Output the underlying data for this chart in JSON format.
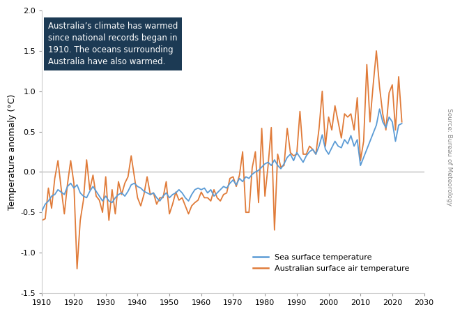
{
  "ylabel": "Temperature anomaly (°C)",
  "source_text": "Source: Bureau of Meteorology",
  "annotation_text": "Australia’s climate has warmed\nsince national records began in\n1910. The oceans surrounding\nAustralia have also warmed.",
  "annotation_bg": "#1c3a54",
  "annotation_text_color": "#ffffff",
  "xlim": [
    1910,
    2030
  ],
  "ylim": [
    -1.5,
    2.0
  ],
  "yticks": [
    -1.5,
    -1.0,
    -0.5,
    0.0,
    0.5,
    1.0,
    1.5,
    2.0
  ],
  "xticks": [
    1910,
    1920,
    1930,
    1940,
    1950,
    1960,
    1970,
    1980,
    1990,
    2000,
    2010,
    2020,
    2030
  ],
  "sea_color": "#5b9bd5",
  "air_color": "#e07b39",
  "sea_label": "Sea surface temperature",
  "air_label": "Australian surface air temperature",
  "background_color": "#ffffff",
  "plot_bg": "#ffffff",
  "grid_color": "#aaaaaa",
  "sea_years": [
    1910,
    1911,
    1912,
    1913,
    1914,
    1915,
    1916,
    1917,
    1918,
    1919,
    1920,
    1921,
    1922,
    1923,
    1924,
    1925,
    1926,
    1927,
    1928,
    1929,
    1930,
    1931,
    1932,
    1933,
    1934,
    1935,
    1936,
    1937,
    1938,
    1939,
    1940,
    1941,
    1942,
    1943,
    1944,
    1945,
    1946,
    1947,
    1948,
    1949,
    1950,
    1951,
    1952,
    1953,
    1954,
    1955,
    1956,
    1957,
    1958,
    1959,
    1960,
    1961,
    1962,
    1963,
    1964,
    1965,
    1966,
    1967,
    1968,
    1969,
    1970,
    1971,
    1972,
    1973,
    1974,
    1975,
    1976,
    1977,
    1978,
    1979,
    1980,
    1981,
    1982,
    1983,
    1984,
    1985,
    1986,
    1987,
    1988,
    1989,
    1990,
    1991,
    1992,
    1993,
    1994,
    1995,
    1996,
    1997,
    1998,
    1999,
    2000,
    2001,
    2002,
    2003,
    2004,
    2005,
    2006,
    2007,
    2008,
    2009,
    2010,
    2011,
    2012,
    2013,
    2014,
    2015,
    2016,
    2017,
    2018,
    2019,
    2020,
    2021,
    2022,
    2023
  ],
  "sea_values": [
    -0.48,
    -0.4,
    -0.36,
    -0.3,
    -0.28,
    -0.22,
    -0.25,
    -0.28,
    -0.18,
    -0.14,
    -0.2,
    -0.16,
    -0.26,
    -0.3,
    -0.32,
    -0.24,
    -0.18,
    -0.24,
    -0.3,
    -0.36,
    -0.3,
    -0.36,
    -0.38,
    -0.32,
    -0.28,
    -0.26,
    -0.3,
    -0.24,
    -0.16,
    -0.14,
    -0.18,
    -0.2,
    -0.24,
    -0.26,
    -0.28,
    -0.26,
    -0.32,
    -0.36,
    -0.3,
    -0.26,
    -0.32,
    -0.28,
    -0.26,
    -0.22,
    -0.26,
    -0.32,
    -0.36,
    -0.28,
    -0.22,
    -0.2,
    -0.22,
    -0.2,
    -0.26,
    -0.22,
    -0.3,
    -0.26,
    -0.22,
    -0.18,
    -0.2,
    -0.14,
    -0.1,
    -0.16,
    -0.08,
    -0.12,
    -0.06,
    -0.08,
    -0.03,
    0.0,
    0.02,
    0.06,
    0.1,
    0.12,
    0.08,
    0.15,
    0.08,
    0.04,
    0.1,
    0.18,
    0.22,
    0.14,
    0.24,
    0.18,
    0.12,
    0.2,
    0.25,
    0.28,
    0.22,
    0.32,
    0.46,
    0.28,
    0.22,
    0.3,
    0.38,
    0.32,
    0.3,
    0.4,
    0.35,
    0.45,
    0.32,
    0.4,
    0.08,
    0.18,
    0.28,
    0.38,
    0.48,
    0.58,
    0.78,
    0.62,
    0.55,
    0.68,
    0.62,
    0.38,
    0.58,
    0.6
  ],
  "air_years": [
    1910,
    1911,
    1912,
    1913,
    1914,
    1915,
    1916,
    1917,
    1918,
    1919,
    1920,
    1921,
    1922,
    1923,
    1924,
    1925,
    1926,
    1927,
    1928,
    1929,
    1930,
    1931,
    1932,
    1933,
    1934,
    1935,
    1936,
    1937,
    1938,
    1939,
    1940,
    1941,
    1942,
    1943,
    1944,
    1945,
    1946,
    1947,
    1948,
    1949,
    1950,
    1951,
    1952,
    1953,
    1954,
    1955,
    1956,
    1957,
    1958,
    1959,
    1960,
    1961,
    1962,
    1963,
    1964,
    1965,
    1966,
    1967,
    1968,
    1969,
    1970,
    1971,
    1972,
    1973,
    1974,
    1975,
    1976,
    1977,
    1978,
    1979,
    1980,
    1981,
    1982,
    1983,
    1984,
    1985,
    1986,
    1987,
    1988,
    1989,
    1990,
    1991,
    1992,
    1993,
    1994,
    1995,
    1996,
    1997,
    1998,
    1999,
    2000,
    2001,
    2002,
    2003,
    2004,
    2005,
    2006,
    2007,
    2008,
    2009,
    2010,
    2011,
    2012,
    2013,
    2014,
    2015,
    2016,
    2017,
    2018,
    2019,
    2020,
    2021,
    2022,
    2023
  ],
  "air_values": [
    -0.6,
    -0.58,
    -0.2,
    -0.45,
    -0.08,
    0.14,
    -0.2,
    -0.52,
    -0.15,
    0.14,
    -0.14,
    -1.2,
    -0.6,
    -0.35,
    0.15,
    -0.22,
    -0.04,
    -0.3,
    -0.35,
    -0.5,
    -0.06,
    -0.6,
    -0.22,
    -0.52,
    -0.12,
    -0.28,
    -0.14,
    -0.06,
    0.2,
    -0.06,
    -0.32,
    -0.42,
    -0.28,
    -0.06,
    -0.28,
    -0.26,
    -0.4,
    -0.32,
    -0.32,
    -0.12,
    -0.52,
    -0.4,
    -0.25,
    -0.35,
    -0.32,
    -0.42,
    -0.52,
    -0.42,
    -0.38,
    -0.35,
    -0.25,
    -0.32,
    -0.32,
    -0.36,
    -0.22,
    -0.32,
    -0.36,
    -0.28,
    -0.26,
    -0.08,
    -0.06,
    -0.18,
    -0.04,
    0.25,
    -0.5,
    -0.5,
    0.05,
    0.25,
    -0.38,
    0.54,
    -0.3,
    0.08,
    0.55,
    -0.72,
    0.22,
    0.06,
    0.08,
    0.54,
    0.24,
    0.2,
    0.22,
    0.75,
    0.22,
    0.22,
    0.32,
    0.28,
    0.22,
    0.54,
    1.0,
    0.32,
    0.68,
    0.52,
    0.82,
    0.62,
    0.42,
    0.72,
    0.68,
    0.72,
    0.52,
    0.92,
    0.14,
    0.38,
    1.33,
    0.62,
    1.08,
    1.5,
    1.05,
    0.72,
    0.52,
    0.98,
    1.08,
    0.52,
    1.18,
    0.62
  ]
}
